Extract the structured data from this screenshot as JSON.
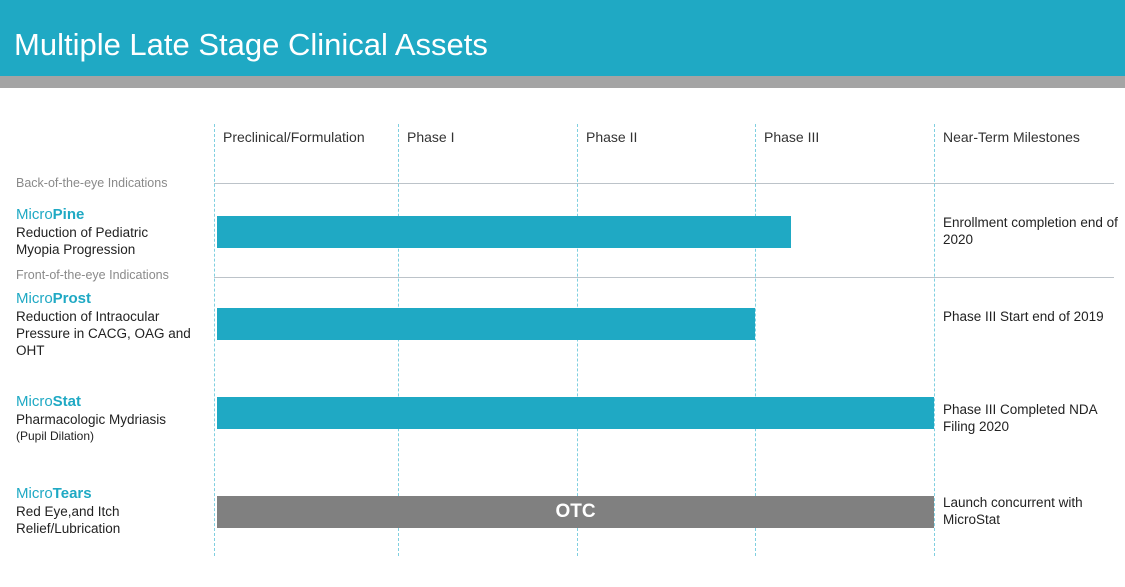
{
  "header": {
    "title": "Multiple Late Stage Clinical Assets"
  },
  "columns": {
    "preclinical": "Preclinical/Formulation",
    "phase1": "Phase I",
    "phase2": "Phase II",
    "phase3": "Phase III",
    "milestones": "Near-Term Milestones"
  },
  "sections": {
    "back": "Back-of-the-eye Indications",
    "front": "Front-of-the-eye Indications"
  },
  "assets": [
    {
      "prefix": "Micro",
      "suffix": "Pine",
      "desc": "Reduction of Pediatric Myopia Progression",
      "sub": "",
      "milestone": "Enrollment completion end of 2020"
    },
    {
      "prefix": "Micro",
      "suffix": "Prost",
      "desc": "Reduction of Intraocular Pressure in CACG, OAG and OHT",
      "sub": "",
      "milestone": "Phase III Start end of 2019"
    },
    {
      "prefix": "Micro",
      "suffix": "Stat",
      "desc": "Pharmacologic Mydriasis",
      "sub": "(Pupil Dilation)",
      "milestone": "Phase III Completed NDA Filing 2020"
    },
    {
      "prefix": "Micro",
      "suffix": "Tears",
      "desc": "Red Eye,and Itch Relief/Lubrication",
      "sub": "",
      "milestone": "Launch concurrent with MicroStat"
    }
  ],
  "colors": {
    "accent": "#1fa9c4",
    "bar": "#1fa9c4",
    "otc_bar": "#808080",
    "stripe": "#a4a4a4"
  },
  "chart_data": {
    "type": "bar",
    "orientation": "horizontal",
    "stages": [
      "Preclinical/Formulation",
      "Phase I",
      "Phase II",
      "Phase III",
      "Near-Term Milestones"
    ],
    "rows": [
      {
        "asset": "MicroPine",
        "progress_stages": 3.2,
        "label": ""
      },
      {
        "asset": "MicroProst",
        "progress_stages": 3.0,
        "label": ""
      },
      {
        "asset": "MicroStat",
        "progress_stages": 4.0,
        "label": ""
      },
      {
        "asset": "MicroTears",
        "progress_stages": 4.0,
        "label": "OTC"
      }
    ],
    "xlim": [
      0,
      5
    ]
  }
}
